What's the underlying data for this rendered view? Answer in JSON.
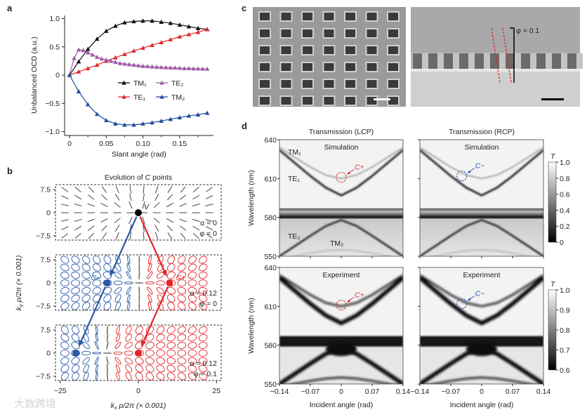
{
  "panel_labels": {
    "a": "a",
    "b": "b",
    "c": "c",
    "d": "d"
  },
  "watermark": "大数跨境",
  "chart_data": [
    {
      "id": "a",
      "type": "line",
      "xlabel": "Slant angle (rad)",
      "ylabel": "Unbalanced OCD (a.u.)",
      "xlim": [
        0,
        0.19
      ],
      "ylim": [
        -1.0,
        1.0
      ],
      "xticks": [
        "0",
        "0.05",
        "0.10",
        "0.15"
      ],
      "xtick_values": [
        0,
        0.05,
        0.1,
        0.15
      ],
      "yticks": [
        "1.0",
        "0.5",
        "0",
        "−0.5",
        "−1.0"
      ],
      "ytick_values": [
        1.0,
        0.5,
        0,
        -0.5,
        -1.0
      ],
      "legend_position": "center-right",
      "series": [
        {
          "name": "TM₁",
          "color": "#111111",
          "x": [
            0,
            0.0125,
            0.025,
            0.0375,
            0.05,
            0.0625,
            0.075,
            0.0875,
            0.1,
            0.1125,
            0.125,
            0.1375,
            0.15,
            0.1625,
            0.175,
            0.1875
          ],
          "y": [
            0,
            0.24,
            0.46,
            0.64,
            0.78,
            0.87,
            0.93,
            0.95,
            0.96,
            0.96,
            0.94,
            0.92,
            0.89,
            0.86,
            0.83,
            0.81
          ]
        },
        {
          "name": "TE₁",
          "color": "#e0282a",
          "x": [
            0,
            0.0125,
            0.025,
            0.0375,
            0.05,
            0.0625,
            0.075,
            0.0875,
            0.1,
            0.1125,
            0.125,
            0.1375,
            0.15,
            0.1625,
            0.175,
            0.1875
          ],
          "y": [
            0,
            0.06,
            0.12,
            0.18,
            0.25,
            0.31,
            0.37,
            0.43,
            0.48,
            0.53,
            0.58,
            0.63,
            0.68,
            0.72,
            0.76,
            0.81
          ]
        },
        {
          "name": "TE₂",
          "color": "#a05aa8",
          "x": [
            0,
            0.00625,
            0.0125,
            0.01875,
            0.025,
            0.03125,
            0.0375,
            0.04375,
            0.05,
            0.05625,
            0.0625,
            0.06875,
            0.075,
            0.08125,
            0.0875,
            0.09375,
            0.1,
            0.10625,
            0.1125,
            0.11875,
            0.125,
            0.13125,
            0.1375,
            0.14375,
            0.15,
            0.15625,
            0.1625,
            0.16875,
            0.175,
            0.18125,
            0.1875
          ],
          "y": [
            0,
            0.3,
            0.45,
            0.44,
            0.4,
            0.36,
            0.32,
            0.29,
            0.27,
            0.25,
            0.23,
            0.21,
            0.2,
            0.19,
            0.18,
            0.17,
            0.16,
            0.155,
            0.15,
            0.145,
            0.14,
            0.135,
            0.13,
            0.13,
            0.125,
            0.12,
            0.12,
            0.115,
            0.115,
            0.11,
            0.11
          ]
        },
        {
          "name": "TM₂",
          "color": "#1f4e9c",
          "x": [
            0,
            0.0125,
            0.025,
            0.0375,
            0.05,
            0.0625,
            0.075,
            0.0875,
            0.1,
            0.1125,
            0.125,
            0.1375,
            0.15,
            0.1625,
            0.175,
            0.1875
          ],
          "y": [
            0,
            -0.29,
            -0.52,
            -0.69,
            -0.8,
            -0.86,
            -0.88,
            -0.88,
            -0.86,
            -0.84,
            -0.81,
            -0.78,
            -0.75,
            -0.72,
            -0.7,
            -0.67
          ]
        }
      ]
    },
    {
      "id": "b",
      "type": "scatter",
      "title_pre": "Evolution of ",
      "title_it": "C",
      "title_post": " points",
      "xlabel": {
        "k": "k",
        "sub": "x",
        "rest": " p/2π (× 0.001)"
      },
      "ylabel": {
        "k": "k",
        "sub": "y",
        "rest": " p/2π (× 0.001)"
      },
      "xlim": [
        -25,
        25
      ],
      "ylim": [
        -7.5,
        7.5
      ],
      "xticks": [
        "−25",
        "0",
        "25"
      ],
      "xtick_values": [
        -25,
        0,
        25
      ],
      "yticks": [
        "7.5",
        "0",
        "−7.5"
      ],
      "ytick_values": [
        7.5,
        0,
        -7.5
      ],
      "colors": {
        "c_minus": "#2a5aa8",
        "c_plus": "#e0282a",
        "v": "#000000"
      },
      "panels": [
        {
          "alpha": "α = 0",
          "phi": "φ = 0",
          "field": "linear",
          "boundary": 0,
          "points": [
            {
              "label": "V",
              "kx": 0,
              "ky": 0,
              "kind": "v"
            }
          ]
        },
        {
          "alpha": "α = 0.12",
          "phi": "φ = 0",
          "field": "elliptical",
          "boundary": 0,
          "points": [
            {
              "label": "C−",
              "kx": -10,
              "ky": 0,
              "kind": "c_minus"
            },
            {
              "label": "C+",
              "kx": 10,
              "ky": 0,
              "kind": "c_plus"
            }
          ]
        },
        {
          "alpha": "α = 0.12",
          "phi": "φ = 0.1",
          "field": "elliptical",
          "boundary": -11,
          "points": [
            {
              "label": "",
              "kx": -20,
              "ky": 0,
              "kind": "c_minus"
            },
            {
              "label": "",
              "kx": 0,
              "ky": 0,
              "kind": "c_plus"
            }
          ]
        }
      ]
    },
    {
      "id": "d",
      "type": "heatmap",
      "xlabel": "Incident angle (rad)",
      "ylabel": "Wavelength (nm)",
      "xlim": [
        -0.14,
        0.14
      ],
      "ylim": [
        550,
        640
      ],
      "xticks": [
        "−0.14",
        "−0.07",
        "0",
        "0.07",
        "0.14"
      ],
      "xtick_values": [
        -0.14,
        -0.07,
        0,
        0.07,
        0.14
      ],
      "yticks": [
        "640",
        "610",
        "580",
        "550"
      ],
      "ytick_values": [
        640,
        610,
        580,
        550
      ],
      "columns": [
        "Transmission (LCP)",
        "Transmission (RCP)"
      ],
      "rows": [
        "Simulation",
        "Experiment"
      ],
      "colorbars": [
        {
          "label": "T",
          "ticks": [
            "1.0",
            "0.8",
            "0.6",
            "0.4",
            "0.2",
            "0"
          ],
          "range": [
            0,
            1
          ]
        },
        {
          "label": "T",
          "ticks": [
            "1.0",
            "0.9",
            "0.8",
            "0.7",
            "0.6"
          ],
          "range": [
            0.6,
            1
          ]
        }
      ],
      "mode_labels": {
        "TM1": "TM₁",
        "TE1": "TE₁",
        "TE2": "TE₂",
        "TM2": "TM₂"
      },
      "modes": [
        {
          "name": "TE₁",
          "angles": [
            -0.14,
            -0.07,
            -0.035,
            0,
            0.035,
            0.07,
            0.14
          ],
          "wavelength_nm": [
            632,
            612,
            603,
            597,
            603,
            612,
            632
          ],
          "strength": 0.75
        },
        {
          "name": "TM₁",
          "angles": [
            -0.14,
            -0.07,
            -0.035,
            0,
            0.035,
            0.07,
            0.14
          ],
          "wavelength_nm": [
            634,
            618.8,
            612.7,
            610,
            612.7,
            618.8,
            634
          ],
          "strength": 0.3
        },
        {
          "name": "TE₂",
          "angles": [
            -0.14,
            -0.07,
            -0.035,
            0,
            0.035,
            0.07,
            0.14
          ],
          "wavelength_nm": [
            550,
            565.8,
            573.3,
            578,
            573.3,
            565.8,
            550
          ],
          "strength": 0.7
        },
        {
          "name": "TM₂",
          "angles": [
            -0.14,
            -0.07,
            -0.035,
            0,
            0.035,
            0.07,
            0.14
          ],
          "wavelength_nm": [
            548,
            552.4,
            554.2,
            555,
            554.2,
            552.4,
            548
          ],
          "strength": 0.15
        }
      ],
      "flat_band_nm": [
        580,
        587
      ],
      "markers": [
        {
          "column": 0,
          "label": "C+",
          "angle": 0,
          "wavelength_nm": 611,
          "color": "#e0282a"
        },
        {
          "column": 1,
          "label": "C−",
          "angle": -0.045,
          "wavelength_nm": 612,
          "color": "#2a5aa8"
        }
      ]
    }
  ],
  "panel_c": {
    "phi_label": "φ = 0.1"
  }
}
